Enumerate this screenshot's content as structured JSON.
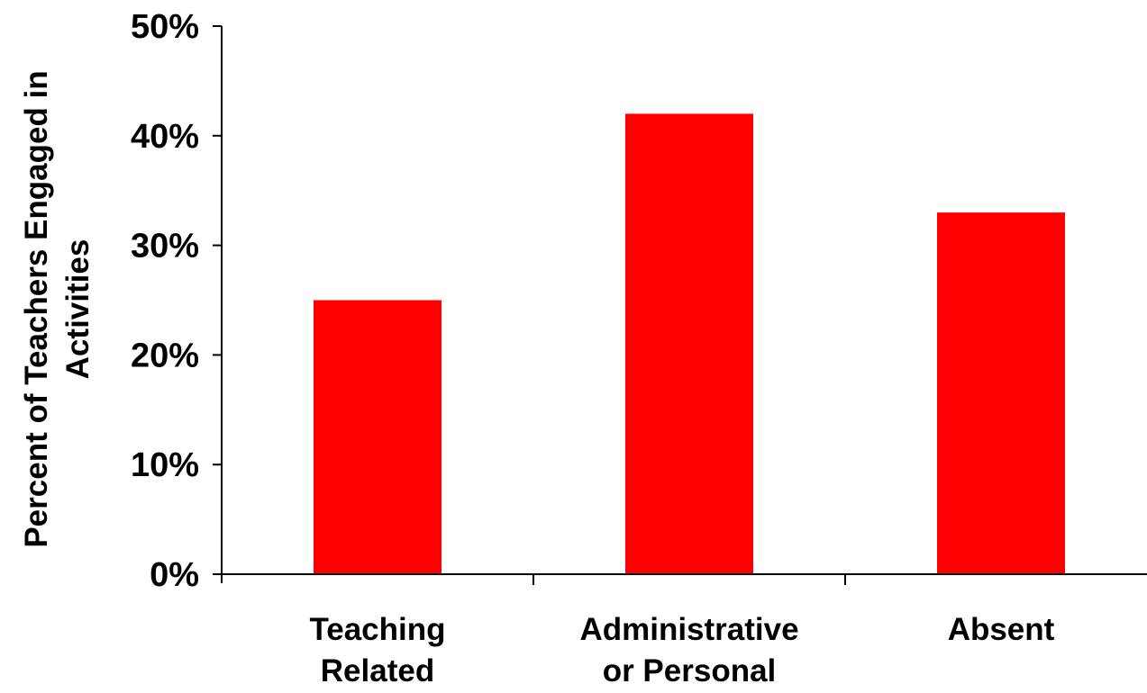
{
  "chart_data": {
    "type": "bar",
    "categories": [
      [
        "Teaching",
        "Related"
      ],
      [
        "Administrative",
        "or Personal"
      ],
      [
        "Absent"
      ]
    ],
    "values": [
      25,
      42,
      33
    ],
    "ylim": [
      0,
      50
    ],
    "yticks": [
      0,
      10,
      20,
      30,
      40,
      50
    ],
    "ytick_labels": [
      "0%",
      "10%",
      "20%",
      "30%",
      "40%",
      "50%"
    ],
    "ylabel_lines": [
      "Percent of Teachers Engaged in",
      "Activities"
    ],
    "xlabel": "",
    "title": "",
    "grid": false,
    "colors": {
      "bar": "#ff0000",
      "axis": "#000000",
      "text": "#000000"
    }
  }
}
